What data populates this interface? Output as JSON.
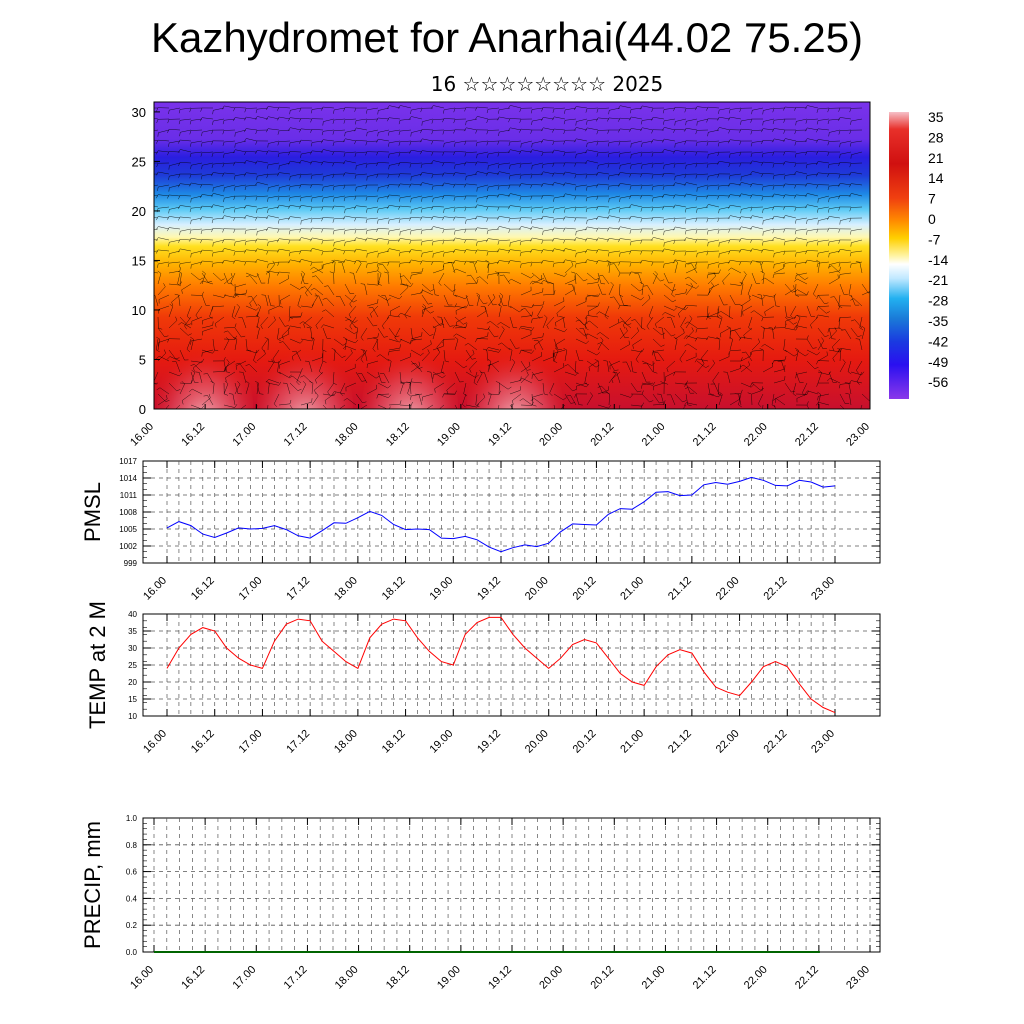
{
  "title": "Kazhydromet for Anarhai(44.02 75.25)",
  "subtitle": "16 ☆☆☆☆☆☆☆☆ 2025",
  "x_ticks": [
    "16.00",
    "16.12",
    "17.00",
    "17.12",
    "18.00",
    "18.12",
    "19.00",
    "19.12",
    "20.00",
    "20.12",
    "21.00",
    "21.12",
    "22.00",
    "22.12",
    "23.00"
  ],
  "colors": {
    "pmsl_line": "#0000ff",
    "temp_line": "#ff0000",
    "precip_line": "#006400"
  },
  "chart_data": [
    {
      "type": "heatmap",
      "title": "",
      "xlabel": "",
      "ylabel": "",
      "ylim": [
        0,
        31
      ],
      "y_ticks": [
        "0",
        "5",
        "10",
        "15",
        "20",
        "25",
        "30"
      ],
      "x_categories": [
        "16.00",
        "16.12",
        "17.00",
        "17.12",
        "18.00",
        "18.12",
        "19.00",
        "19.12",
        "20.00",
        "20.12",
        "21.00",
        "21.12",
        "22.00",
        "22.12",
        "23.00"
      ],
      "colorbar_labels": [
        "35",
        "28",
        "21",
        "14",
        "7",
        "0",
        "-7",
        "-14",
        "-21",
        "-28",
        "-35",
        "-42",
        "-49",
        "-56"
      ],
      "overlay": "wind barbs"
    },
    {
      "type": "line",
      "title": "",
      "ylabel": "PMSL",
      "ylim": [
        999,
        1017
      ],
      "y_ticks": [
        "999",
        "1002",
        "1005",
        "1008",
        "1011",
        "1014",
        "1017"
      ],
      "series": [
        {
          "values": [
            1005.2,
            1006.3,
            1005.6,
            1004.1,
            1003.5,
            1004.3,
            1005.2,
            1005.0,
            1005.1,
            1005.6,
            1004.9,
            1003.8,
            1003.4,
            1004.7,
            1006.1,
            1006.0,
            1007.0,
            1008.1,
            1007.4,
            1005.8,
            1004.9,
            1005.0,
            1004.9,
            1003.4,
            1003.3,
            1003.7,
            1003.1,
            1001.8,
            1001.0,
            1001.7,
            1002.2,
            1001.9,
            1002.5,
            1004.5,
            1005.9,
            1005.8,
            1005.7,
            1007.6,
            1008.6,
            1008.5,
            1009.8,
            1011.5,
            1011.6,
            1010.9,
            1011.0,
            1012.8,
            1013.2,
            1012.9,
            1013.4,
            1014.1,
            1013.6,
            1012.7,
            1012.6,
            1013.6,
            1013.3,
            1012.4,
            1012.6
          ]
        }
      ]
    },
    {
      "type": "line",
      "title": "",
      "ylabel": "TEMP at 2 M",
      "ylim": [
        10,
        40
      ],
      "y_ticks": [
        "10",
        "15",
        "20",
        "25",
        "30",
        "35",
        "40"
      ],
      "series": [
        {
          "values": [
            24,
            30,
            34,
            36,
            35,
            30,
            27,
            25,
            24,
            32,
            37,
            38.5,
            38,
            32,
            29,
            26,
            24,
            33,
            37,
            38.5,
            38,
            33,
            29,
            26,
            25,
            34,
            37.5,
            39,
            39,
            34,
            30,
            27,
            24,
            27,
            31,
            32.5,
            31.5,
            27,
            22.5,
            20,
            19,
            24.5,
            28,
            29.5,
            28.5,
            23,
            18.5,
            17,
            16,
            20,
            24.5,
            26,
            24.5,
            19.5,
            15,
            12.5,
            11
          ]
        }
      ]
    },
    {
      "type": "line",
      "title": "",
      "ylabel": "PRECIP, mm",
      "ylim": [
        0,
        1
      ],
      "y_ticks": [
        "0.0",
        "0.2",
        "0.4",
        "0.6",
        "0.8",
        "1.0"
      ],
      "series": [
        {
          "values": [
            0,
            0,
            0,
            0,
            0,
            0,
            0,
            0,
            0,
            0,
            0,
            0,
            0,
            0,
            0,
            0,
            0,
            0,
            0,
            0,
            0,
            0,
            0,
            0,
            0,
            0,
            0,
            0,
            0,
            0,
            0,
            0,
            0,
            0,
            0,
            0,
            0,
            0,
            0,
            0,
            0,
            0,
            0,
            0,
            0,
            0,
            0,
            0,
            0,
            0,
            0,
            0,
            0,
            0,
            0,
            0,
            0
          ]
        }
      ]
    }
  ]
}
